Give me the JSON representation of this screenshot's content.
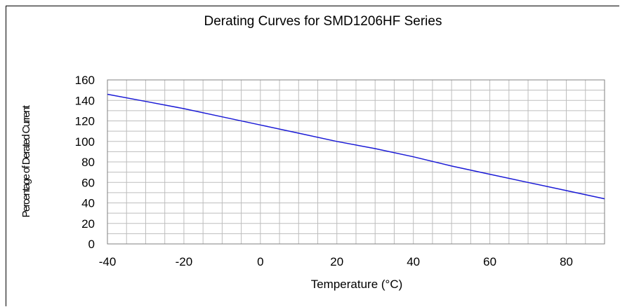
{
  "chart_data": {
    "type": "line",
    "title": "Derating Curves for SMD1206HF Series",
    "xlabel": "Temperature (°C)",
    "ylabel": "Percentage of Derated Current",
    "xlim": [
      -40,
      90
    ],
    "ylim": [
      0,
      160
    ],
    "x_ticks": [
      -40,
      -20,
      0,
      20,
      40,
      60,
      80
    ],
    "y_ticks": [
      0,
      20,
      40,
      60,
      80,
      100,
      120,
      140,
      160
    ],
    "x_gridlines_every": 5,
    "y_gridlines_every": 10,
    "grid": true,
    "series_color": "#1a1ad6",
    "grid_color": "#bdbdbd",
    "series": [
      {
        "x": [
          -40,
          -30,
          -20,
          -10,
          0,
          10,
          20,
          30,
          40,
          50,
          60,
          70,
          80,
          90
        ],
        "values": [
          146,
          139,
          132,
          124,
          116,
          108,
          100,
          93,
          85,
          76,
          68,
          60,
          52,
          44
        ]
      }
    ]
  }
}
